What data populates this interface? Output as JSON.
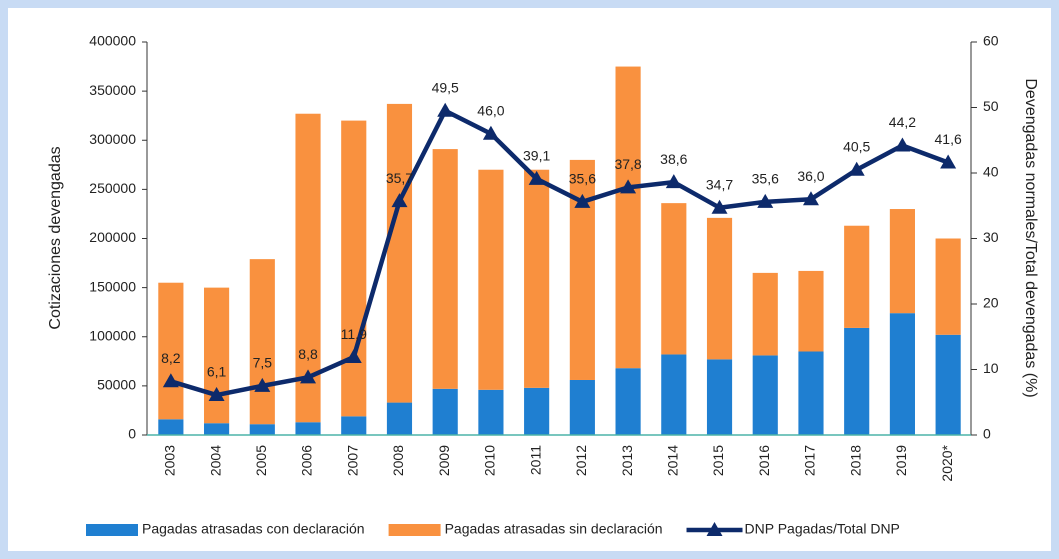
{
  "chart_data": {
    "type": "bar-line",
    "categories": [
      "2003",
      "2004",
      "2005",
      "2006",
      "2007",
      "2008",
      "2009",
      "2010",
      "2011",
      "2012",
      "2013",
      "2014",
      "2015",
      "2016",
      "2017",
      "2018",
      "2019",
      "2020*"
    ],
    "y_label": "Cotizaciones devengadas",
    "y2_label": "Devengadas normales/Total devengadas (%)",
    "ylim": [
      0,
      400000
    ],
    "yticks": [
      0,
      50000,
      100000,
      150000,
      200000,
      250000,
      300000,
      350000,
      400000
    ],
    "y2lim": [
      0,
      60
    ],
    "y2ticks": [
      0,
      10,
      20,
      30,
      40,
      50,
      60
    ],
    "legend": "bottom",
    "series": [
      {
        "name": "Pagadas atrasadas con declaración",
        "type": "bar",
        "color": "#1f7fd1",
        "values": [
          16000,
          12000,
          11000,
          13000,
          19000,
          33000,
          47000,
          46000,
          48000,
          56000,
          68000,
          82000,
          77000,
          81000,
          85000,
          109000,
          124000,
          102000
        ]
      },
      {
        "name": "Pagadas atrasadas sin declaración",
        "type": "bar",
        "color": "#f9913f",
        "values": [
          139000,
          138000,
          168000,
          314000,
          301000,
          304000,
          244000,
          224000,
          222000,
          224000,
          307000,
          154000,
          144000,
          84000,
          82000,
          104000,
          106000,
          98000
        ]
      },
      {
        "name": "DNP Pagadas/Total DNP",
        "type": "line",
        "axis": "y2",
        "color": "#0d2a6b",
        "values": [
          8.2,
          6.1,
          7.5,
          8.8,
          11.9,
          35.7,
          49.5,
          46.0,
          39.1,
          35.6,
          37.8,
          38.6,
          34.7,
          35.6,
          36.0,
          40.5,
          44.2,
          41.6
        ],
        "value_labels": [
          "8,2",
          "6,1",
          "7,5",
          "8,8",
          "11,9",
          "35,7",
          "49,5",
          "46,0",
          "39,1",
          "35,6",
          "37,8",
          "38,6",
          "34,7",
          "35,6",
          "36,0",
          "40,5",
          "44,2",
          "41,6"
        ]
      }
    ]
  }
}
